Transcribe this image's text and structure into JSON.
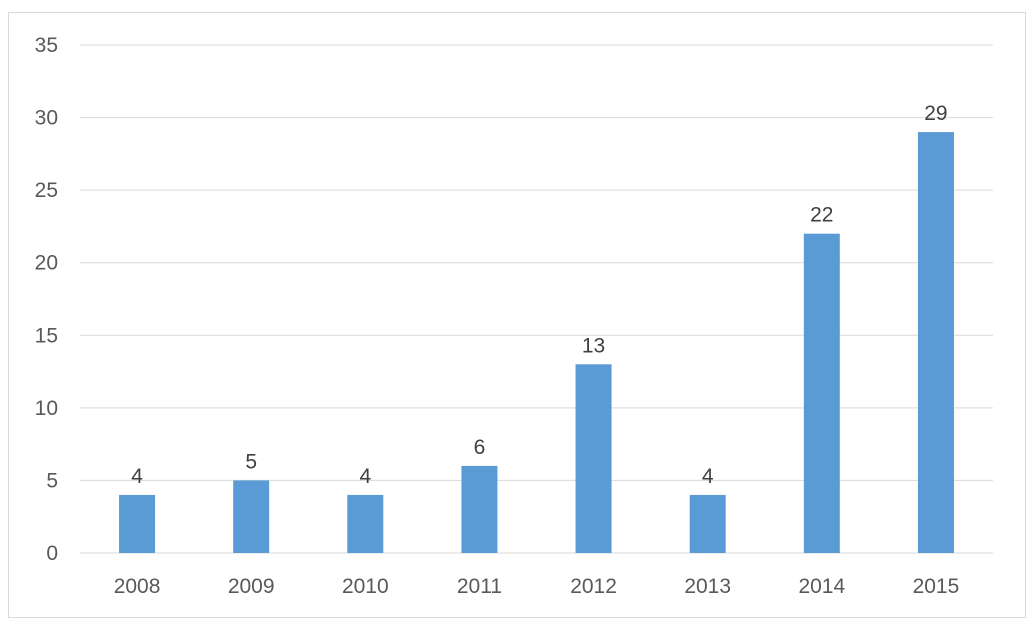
{
  "chart_data": {
    "type": "bar",
    "title": "",
    "xlabel": "",
    "ylabel": "",
    "categories": [
      "2008",
      "2009",
      "2010",
      "2011",
      "2012",
      "2013",
      "2014",
      "2015"
    ],
    "values": [
      4,
      5,
      4,
      6,
      13,
      4,
      22,
      29
    ],
    "ylim": [
      0,
      35
    ],
    "yticks": [
      0,
      5,
      10,
      15,
      20,
      25,
      30,
      35
    ],
    "grid": true,
    "legend": "none",
    "data_labels": true,
    "bar_color": "#5b9bd5",
    "gridline_color": "#d9d9d9"
  }
}
